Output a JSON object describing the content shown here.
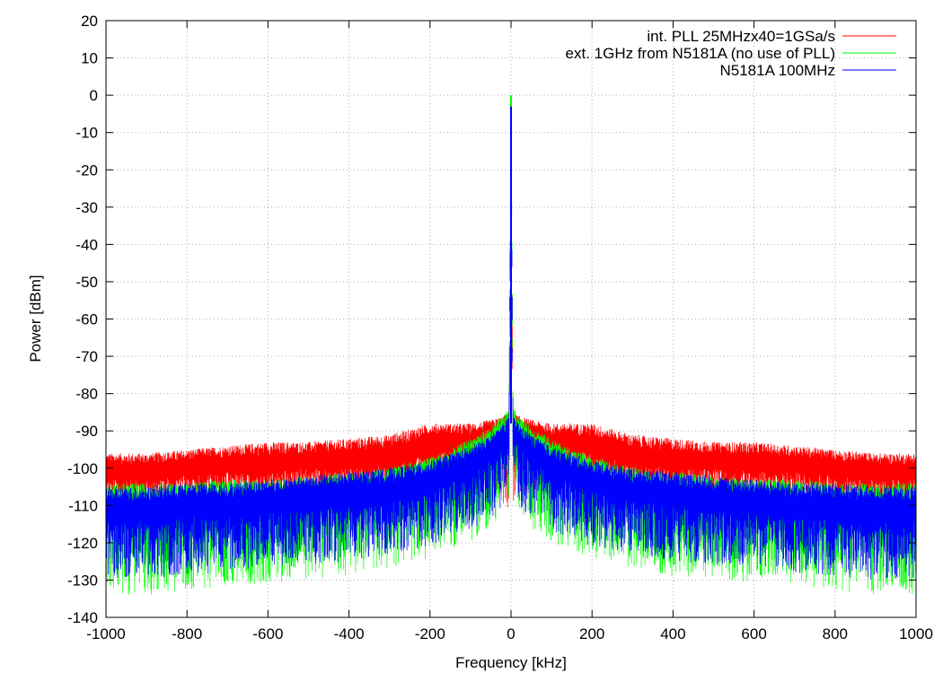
{
  "chart_data": {
    "type": "line",
    "title": "",
    "xlabel": "Frequency [kHz]",
    "ylabel": "Power [dBm]",
    "xlim": [
      -1000,
      1000
    ],
    "ylim": [
      -140,
      20
    ],
    "xticks": [
      -1000,
      -800,
      -600,
      -400,
      -200,
      0,
      200,
      400,
      600,
      800,
      1000
    ],
    "yticks": [
      20,
      10,
      0,
      -10,
      -20,
      -30,
      -40,
      -50,
      -60,
      -70,
      -80,
      -90,
      -100,
      -110,
      -120,
      -130,
      -140
    ],
    "grid": true,
    "legend_position": "top-right",
    "series": [
      {
        "name": "int. PLL 25MHzx40=1GSa/s",
        "color": "#ff0000",
        "x": [
          -1000,
          -900,
          -800,
          -700,
          -600,
          -500,
          -400,
          -300,
          -200,
          -150,
          -100,
          -50,
          -20,
          -5,
          0,
          5,
          20,
          50,
          100,
          150,
          200,
          300,
          400,
          500,
          600,
          700,
          800,
          900,
          1000
        ],
        "y_upper": [
          -96,
          -96,
          -95,
          -94,
          -93,
          -93,
          -92,
          -91,
          -88,
          -88,
          -88,
          -87,
          -86,
          -85,
          -2,
          -85,
          -86,
          -87,
          -88,
          -88,
          -88,
          -91,
          -92,
          -93,
          -93,
          -94,
          -95,
          -96,
          -96
        ],
        "y_center": [
          -103,
          -103,
          -102,
          -101,
          -101,
          -100,
          -100,
          -99,
          -96,
          -95,
          -95,
          -94,
          -92,
          -90,
          -2,
          -90,
          -92,
          -94,
          -95,
          -95,
          -96,
          -99,
          -100,
          -100,
          -101,
          -101,
          -102,
          -103,
          -103
        ],
        "y_lower": [
          -110,
          -110,
          -109,
          -108,
          -108,
          -108,
          -107,
          -106,
          -104,
          -104,
          -104,
          -106,
          -110,
          -112,
          -2,
          -112,
          -110,
          -106,
          -104,
          -104,
          -104,
          -106,
          -107,
          -108,
          -108,
          -108,
          -109,
          -110,
          -110
        ]
      },
      {
        "name": "ext. 1GHz from N5181A (no use of PLL)",
        "color": "#00ff00",
        "x": [
          -1000,
          -900,
          -800,
          -700,
          -600,
          -500,
          -400,
          -300,
          -200,
          -150,
          -100,
          -50,
          -20,
          -5,
          0,
          5,
          20,
          50,
          100,
          150,
          200,
          300,
          400,
          500,
          600,
          700,
          800,
          900,
          1000
        ],
        "y_upper": [
          -104,
          -104,
          -104,
          -103,
          -103,
          -102,
          -101,
          -100,
          -97,
          -95,
          -92,
          -89,
          -86,
          -84,
          0,
          -84,
          -86,
          -89,
          -92,
          -95,
          -97,
          -100,
          -101,
          -102,
          -103,
          -103,
          -104,
          -104,
          -104
        ],
        "y_center": [
          -113,
          -113,
          -113,
          -112,
          -112,
          -111,
          -110,
          -108,
          -105,
          -103,
          -100,
          -96,
          -93,
          -90,
          0,
          -90,
          -93,
          -96,
          -100,
          -103,
          -105,
          -108,
          -110,
          -111,
          -112,
          -112,
          -113,
          -113,
          -113
        ],
        "y_lower": [
          -134,
          -134,
          -133,
          -132,
          -131,
          -130,
          -129,
          -127,
          -124,
          -122,
          -120,
          -116,
          -112,
          -108,
          0,
          -108,
          -112,
          -116,
          -120,
          -122,
          -124,
          -127,
          -129,
          -130,
          -131,
          -132,
          -133,
          -134,
          -134
        ]
      },
      {
        "name": "N5181A 100MHz",
        "color": "#0000ff",
        "x": [
          -1000,
          -900,
          -800,
          -700,
          -600,
          -500,
          -400,
          -300,
          -200,
          -150,
          -100,
          -50,
          -20,
          -5,
          0,
          5,
          20,
          50,
          100,
          150,
          200,
          300,
          400,
          500,
          600,
          700,
          800,
          900,
          1000
        ],
        "y_upper": [
          -105,
          -105,
          -104,
          -104,
          -103,
          -102,
          -101,
          -100,
          -98,
          -96,
          -94,
          -91,
          -88,
          -86,
          -3,
          -86,
          -88,
          -91,
          -94,
          -96,
          -98,
          -100,
          -101,
          -102,
          -103,
          -104,
          -104,
          -105,
          -105
        ],
        "y_center": [
          -114,
          -114,
          -113,
          -113,
          -112,
          -111,
          -110,
          -109,
          -106,
          -104,
          -102,
          -98,
          -95,
          -92,
          -3,
          -92,
          -95,
          -98,
          -102,
          -104,
          -106,
          -109,
          -110,
          -111,
          -112,
          -113,
          -113,
          -114,
          -114
        ],
        "y_lower": [
          -130,
          -130,
          -129,
          -128,
          -127,
          -126,
          -125,
          -123,
          -121,
          -119,
          -117,
          -114,
          -110,
          -106,
          -3,
          -106,
          -110,
          -114,
          -117,
          -119,
          -121,
          -123,
          -125,
          -126,
          -127,
          -128,
          -129,
          -130,
          -130
        ]
      }
    ]
  }
}
